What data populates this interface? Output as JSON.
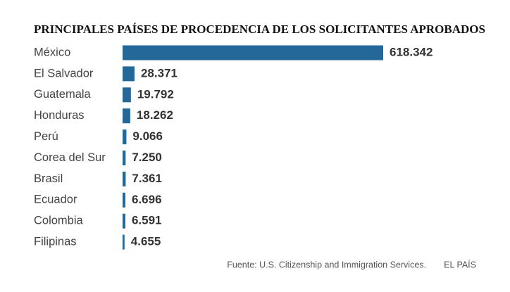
{
  "chart_data": {
    "type": "bar",
    "orientation": "horizontal",
    "title": "PRINCIPALES PAÍSES DE PROCEDENCIA DE LOS SOLICITANTES APROBADOS",
    "categories": [
      "México",
      "El Salvador",
      "Guatemala",
      "Honduras",
      "Perú",
      "Corea del Sur",
      "Brasil",
      "Ecuador",
      "Colombia",
      "Filipinas"
    ],
    "values": [
      618342,
      28371,
      19792,
      18262,
      9066,
      7250,
      7361,
      6696,
      6591,
      4655
    ],
    "value_labels": [
      "618.342",
      "28.371",
      "19.792",
      "18.262",
      "9.066",
      "7.250",
      "7.361",
      "6.696",
      "6.591",
      "4.655"
    ],
    "color": "#24689a",
    "source": "Fuente: U.S. Citizenship and Immigration Services.",
    "credit": "EL PAÍS"
  }
}
